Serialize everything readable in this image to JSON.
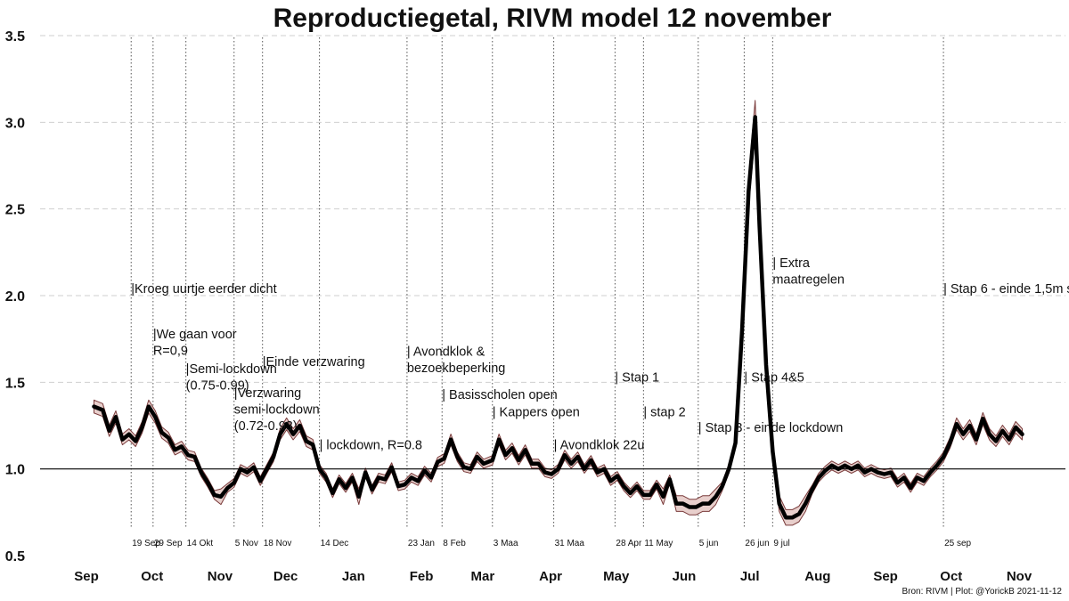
{
  "chart_data": {
    "type": "line",
    "title": "Reproductiegetal, RIVM model 12 november",
    "xlabel": "",
    "ylabel": "",
    "ylim": [
      0.5,
      3.5
    ],
    "yticks": [
      "0.5",
      "1.0",
      "1.5",
      "2.0",
      "2.5",
      "3.0",
      "3.5"
    ],
    "reference_line": 1.0,
    "x_range": [
      "2020-09-01",
      "2021-11-15"
    ],
    "month_labels": [
      {
        "label": "Sep",
        "date": "2020-09-01"
      },
      {
        "label": "Oct",
        "date": "2020-10-01"
      },
      {
        "label": "Nov",
        "date": "2020-11-01"
      },
      {
        "label": "Dec",
        "date": "2020-12-01"
      },
      {
        "label": "Jan",
        "date": "2021-01-01"
      },
      {
        "label": "Feb",
        "date": "2021-02-01"
      },
      {
        "label": "Mar",
        "date": "2021-03-01"
      },
      {
        "label": "Apr",
        "date": "2021-04-01"
      },
      {
        "label": "May",
        "date": "2021-05-01"
      },
      {
        "label": "Jun",
        "date": "2021-06-01"
      },
      {
        "label": "Jul",
        "date": "2021-07-01"
      },
      {
        "label": "Aug",
        "date": "2021-08-01"
      },
      {
        "label": "Sep",
        "date": "2021-09-01"
      },
      {
        "label": "Oct",
        "date": "2021-10-01"
      },
      {
        "label": "Nov",
        "date": "2021-11-01"
      }
    ],
    "series": [
      {
        "name": "Reproductiegetal",
        "line_color": "#000000",
        "band_color": "#e8cfcc",
        "points": [
          [
            "2020-09-02",
            1.36
          ],
          [
            "2020-09-06",
            1.34
          ],
          [
            "2020-09-09",
            1.22
          ],
          [
            "2020-09-12",
            1.3
          ],
          [
            "2020-09-15",
            1.17
          ],
          [
            "2020-09-18",
            1.2
          ],
          [
            "2020-09-21",
            1.16
          ],
          [
            "2020-09-24",
            1.24
          ],
          [
            "2020-09-27",
            1.36
          ],
          [
            "2020-09-30",
            1.3
          ],
          [
            "2020-10-03",
            1.21
          ],
          [
            "2020-10-06",
            1.18
          ],
          [
            "2020-10-09",
            1.11
          ],
          [
            "2020-10-12",
            1.13
          ],
          [
            "2020-10-15",
            1.08
          ],
          [
            "2020-10-18",
            1.07
          ],
          [
            "2020-10-21",
            0.98
          ],
          [
            "2020-10-24",
            0.92
          ],
          [
            "2020-10-27",
            0.85
          ],
          [
            "2020-10-30",
            0.84
          ],
          [
            "2020-11-02",
            0.89
          ],
          [
            "2020-11-05",
            0.92
          ],
          [
            "2020-11-08",
            1.0
          ],
          [
            "2020-11-11",
            0.98
          ],
          [
            "2020-11-14",
            1.01
          ],
          [
            "2020-11-17",
            0.93
          ],
          [
            "2020-11-20",
            1.0
          ],
          [
            "2020-11-23",
            1.07
          ],
          [
            "2020-11-26",
            1.2
          ],
          [
            "2020-11-29",
            1.26
          ],
          [
            "2020-12-02",
            1.2
          ],
          [
            "2020-12-05",
            1.25
          ],
          [
            "2020-12-08",
            1.16
          ],
          [
            "2020-12-11",
            1.14
          ],
          [
            "2020-12-14",
            1.0
          ],
          [
            "2020-12-17",
            0.95
          ],
          [
            "2020-12-20",
            0.86
          ],
          [
            "2020-12-23",
            0.94
          ],
          [
            "2020-12-26",
            0.89
          ],
          [
            "2020-12-29",
            0.95
          ],
          [
            "2021-01-01",
            0.84
          ],
          [
            "2021-01-04",
            0.98
          ],
          [
            "2021-01-07",
            0.88
          ],
          [
            "2021-01-10",
            0.95
          ],
          [
            "2021-01-13",
            0.94
          ],
          [
            "2021-01-16",
            1.01
          ],
          [
            "2021-01-19",
            0.9
          ],
          [
            "2021-01-22",
            0.91
          ],
          [
            "2021-01-25",
            0.95
          ],
          [
            "2021-01-28",
            0.93
          ],
          [
            "2021-01-31",
            0.99
          ],
          [
            "2021-02-03",
            0.95
          ],
          [
            "2021-02-06",
            1.04
          ],
          [
            "2021-02-09",
            1.06
          ],
          [
            "2021-02-12",
            1.17
          ],
          [
            "2021-02-15",
            1.07
          ],
          [
            "2021-02-18",
            1.01
          ],
          [
            "2021-02-21",
            1.0
          ],
          [
            "2021-02-24",
            1.07
          ],
          [
            "2021-02-27",
            1.03
          ],
          [
            "2021-03-03",
            1.05
          ],
          [
            "2021-03-06",
            1.17
          ],
          [
            "2021-03-09",
            1.08
          ],
          [
            "2021-03-12",
            1.12
          ],
          [
            "2021-03-15",
            1.05
          ],
          [
            "2021-03-18",
            1.11
          ],
          [
            "2021-03-21",
            1.03
          ],
          [
            "2021-03-24",
            1.03
          ],
          [
            "2021-03-27",
            0.98
          ],
          [
            "2021-03-30",
            0.97
          ],
          [
            "2021-04-02",
            1.0
          ],
          [
            "2021-04-05",
            1.08
          ],
          [
            "2021-04-08",
            1.03
          ],
          [
            "2021-04-11",
            1.07
          ],
          [
            "2021-04-14",
            1.0
          ],
          [
            "2021-04-17",
            1.05
          ],
          [
            "2021-04-20",
            0.98
          ],
          [
            "2021-04-23",
            1.0
          ],
          [
            "2021-04-26",
            0.93
          ],
          [
            "2021-04-29",
            0.96
          ],
          [
            "2021-05-02",
            0.9
          ],
          [
            "2021-05-05",
            0.86
          ],
          [
            "2021-05-08",
            0.9
          ],
          [
            "2021-05-11",
            0.85
          ],
          [
            "2021-05-14",
            0.85
          ],
          [
            "2021-05-17",
            0.91
          ],
          [
            "2021-05-20",
            0.84
          ],
          [
            "2021-05-23",
            0.94
          ],
          [
            "2021-05-26",
            0.8
          ],
          [
            "2021-05-29",
            0.8
          ],
          [
            "2021-06-01",
            0.78
          ],
          [
            "2021-06-04",
            0.78
          ],
          [
            "2021-06-07",
            0.8
          ],
          [
            "2021-06-10",
            0.8
          ],
          [
            "2021-06-13",
            0.84
          ],
          [
            "2021-06-16",
            0.9
          ],
          [
            "2021-06-19",
            1.0
          ],
          [
            "2021-06-22",
            1.15
          ],
          [
            "2021-06-25",
            1.8
          ],
          [
            "2021-06-28",
            2.6
          ],
          [
            "2021-07-01",
            3.03
          ],
          [
            "2021-07-03",
            2.4
          ],
          [
            "2021-07-06",
            1.6
          ],
          [
            "2021-07-09",
            1.1
          ],
          [
            "2021-07-12",
            0.8
          ],
          [
            "2021-07-15",
            0.72
          ],
          [
            "2021-07-18",
            0.72
          ],
          [
            "2021-07-21",
            0.74
          ],
          [
            "2021-07-24",
            0.8
          ],
          [
            "2021-07-27",
            0.88
          ],
          [
            "2021-07-30",
            0.95
          ],
          [
            "2021-08-02",
            0.99
          ],
          [
            "2021-08-05",
            1.02
          ],
          [
            "2021-08-08",
            1.0
          ],
          [
            "2021-08-11",
            1.02
          ],
          [
            "2021-08-14",
            1.0
          ],
          [
            "2021-08-17",
            1.02
          ],
          [
            "2021-08-20",
            0.98
          ],
          [
            "2021-08-23",
            1.0
          ],
          [
            "2021-08-26",
            0.98
          ],
          [
            "2021-08-29",
            0.97
          ],
          [
            "2021-09-01",
            0.98
          ],
          [
            "2021-09-04",
            0.92
          ],
          [
            "2021-09-07",
            0.95
          ],
          [
            "2021-09-10",
            0.89
          ],
          [
            "2021-09-13",
            0.95
          ],
          [
            "2021-09-16",
            0.93
          ],
          [
            "2021-09-19",
            0.98
          ],
          [
            "2021-09-22",
            1.02
          ],
          [
            "2021-09-25",
            1.07
          ],
          [
            "2021-09-28",
            1.15
          ],
          [
            "2021-10-01",
            1.26
          ],
          [
            "2021-10-04",
            1.2
          ],
          [
            "2021-10-07",
            1.25
          ],
          [
            "2021-10-10",
            1.17
          ],
          [
            "2021-10-13",
            1.29
          ],
          [
            "2021-10-16",
            1.2
          ],
          [
            "2021-10-19",
            1.16
          ],
          [
            "2021-10-22",
            1.22
          ],
          [
            "2021-10-25",
            1.17
          ],
          [
            "2021-10-28",
            1.24
          ],
          [
            "2021-10-31",
            1.2
          ]
        ]
      }
    ],
    "events": [
      {
        "date": "2020-09-19",
        "date_label": "19 Sep",
        "text": [
          "|Kroeg uurtje eerder dicht"
        ],
        "y": 2.04
      },
      {
        "date": "2020-09-29",
        "date_label": "29 Sep",
        "text": [
          "|We gaan voor",
          "R=0,9"
        ],
        "y": 1.78
      },
      {
        "date": "2020-10-14",
        "date_label": "14 Okt",
        "text": [
          "|Semi-lockdown",
          "(0.75-0.99)"
        ],
        "y": 1.58
      },
      {
        "date": "2020-11-05",
        "date_label": "5 Nov",
        "text": [
          "|Verzwaring",
          "semi-lockdown",
          "(0.72-0.93)"
        ],
        "y": 1.44
      },
      {
        "date": "2020-11-18",
        "date_label": "18 Nov",
        "text": [
          "|Einde verzwaring"
        ],
        "y": 1.62
      },
      {
        "date": "2020-12-14",
        "date_label": "14 Dec",
        "text": [
          "| lockdown, R=0.8"
        ],
        "y": 1.14
      },
      {
        "date": "2021-01-23",
        "date_label": "23 Jan",
        "text": [
          "| Avondklok &",
          "bezoekbeperking"
        ],
        "y": 1.68
      },
      {
        "date": "2021-02-08",
        "date_label": "8 Feb",
        "text": [
          "| Basisscholen open"
        ],
        "y": 1.43
      },
      {
        "date": "2021-03-03",
        "date_label": "3 Maa",
        "text": [
          "| Kappers open"
        ],
        "y": 1.33
      },
      {
        "date": "2021-03-31",
        "date_label": "31 Maa",
        "text": [
          "| Avondklok 22u"
        ],
        "y": 1.14
      },
      {
        "date": "2021-04-28",
        "date_label": "28 Apr",
        "text": [
          "| Stap 1"
        ],
        "y": 1.53
      },
      {
        "date": "2021-05-11",
        "date_label": "11 May",
        "text": [
          "| stap 2"
        ],
        "y": 1.33
      },
      {
        "date": "2021-06-05",
        "date_label": "5 jun",
        "text": [
          "| Stap 3 - einde lockdown"
        ],
        "y": 1.24
      },
      {
        "date": "2021-06-26",
        "date_label": "26 jun",
        "text": [
          "| Stap 4&5"
        ],
        "y": 1.53
      },
      {
        "date": "2021-07-09",
        "date_label": "9 jul",
        "text": [
          "| Extra",
          "maatregelen"
        ],
        "y": 2.19
      },
      {
        "date": "2021-09-25",
        "date_label": "25 sep",
        "text": [
          "| Stap 6 - einde 1,5m s"
        ],
        "y": 2.04
      }
    ],
    "caption": "Bron: RIVM | Plot: @YorickB  2021-11-12"
  },
  "colors": {
    "line": "#000000",
    "band": "#e8cfcc",
    "band_edge": "#7a3b3b",
    "grid": "#cfcfcf",
    "event_line": "#555555"
  }
}
